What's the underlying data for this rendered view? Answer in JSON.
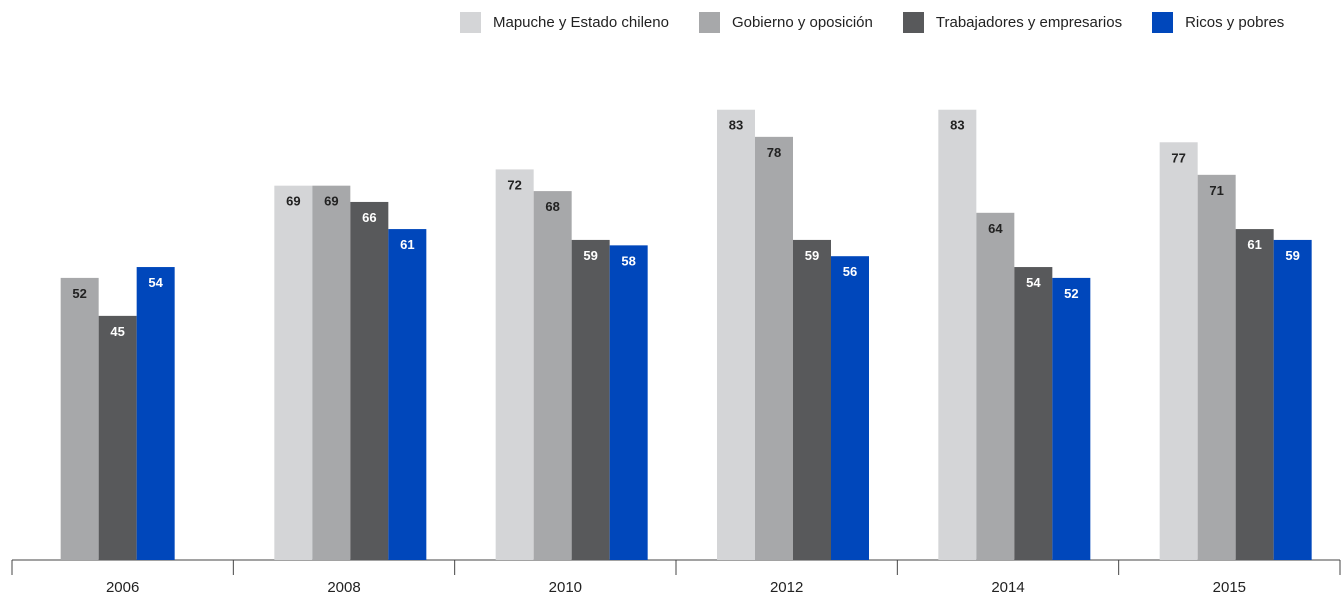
{
  "chart_data": {
    "type": "bar",
    "categories": [
      "2006",
      "2008",
      "2010",
      "2012",
      "2014",
      "2015"
    ],
    "series": [
      {
        "name": "Mapuche y Estado chileno",
        "color": "#d4d5d7",
        "label_color": "#222222",
        "values": [
          null,
          69,
          72,
          83,
          83,
          77
        ]
      },
      {
        "name": "Gobierno y oposición",
        "color": "#a7a8aa",
        "label_color": "#222222",
        "values": [
          52,
          69,
          68,
          78,
          64,
          71
        ]
      },
      {
        "name": "Trabajadores y empresarios",
        "color": "#58595b",
        "label_color": "#ffffff",
        "values": [
          45,
          66,
          59,
          59,
          54,
          61
        ]
      },
      {
        "name": "Ricos y pobres",
        "color": "#0047bb",
        "label_color": "#ffffff",
        "values": [
          54,
          61,
          58,
          56,
          52,
          59
        ]
      }
    ],
    "ylim": [
      0,
      100
    ],
    "grid": false,
    "legend_position": "top-right",
    "data_labels": "inside-top"
  }
}
